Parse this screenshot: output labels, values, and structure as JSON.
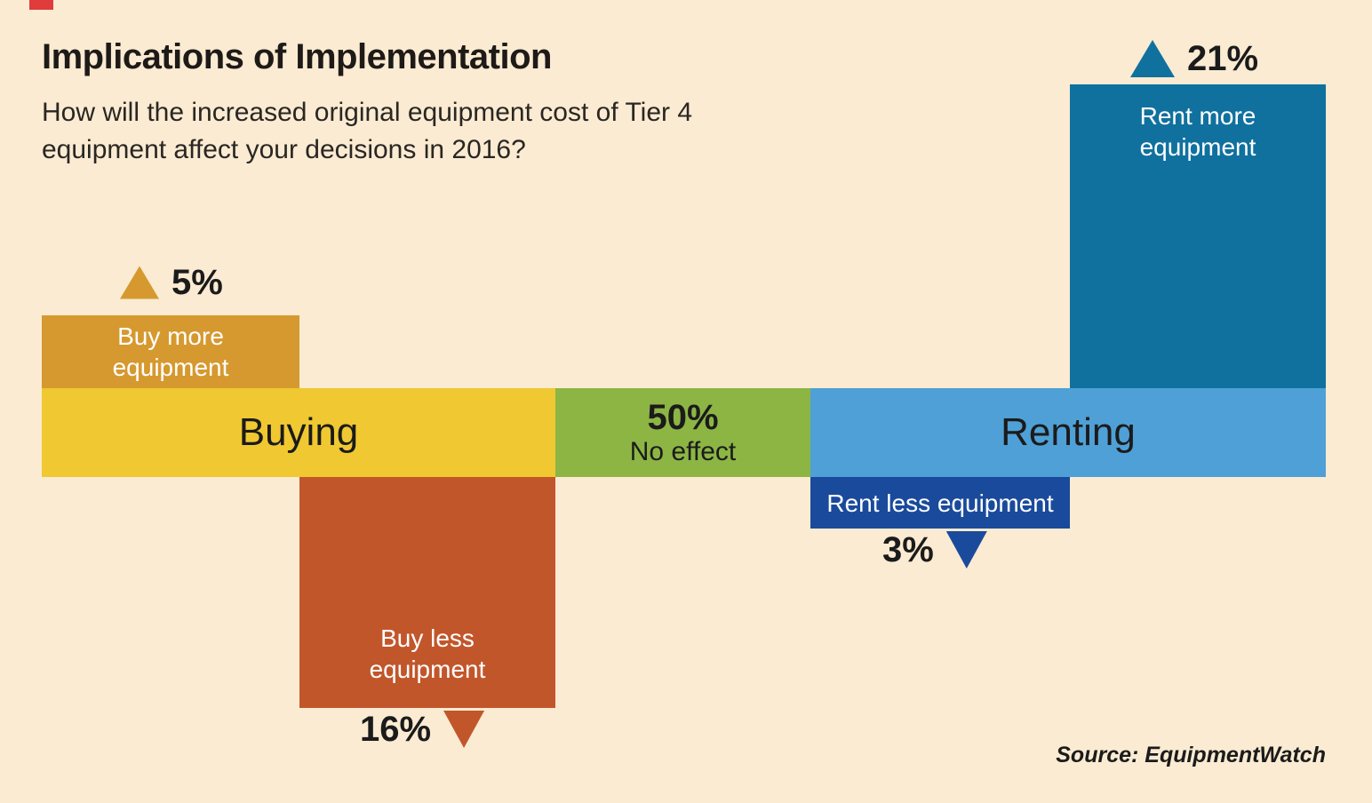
{
  "colors": {
    "background": "#FAEBD2",
    "corner_red": "#E03C3C",
    "buying_yellow": "#F0C831",
    "no_effect_green": "#8CB544",
    "renting_blue": "#4FA0D6",
    "buy_more_amber": "#D6992F",
    "buy_less_rust": "#C2562B",
    "rent_more_teal": "#10719F",
    "rent_less_navy": "#1A4A9B",
    "text_dark": "#1b1b1b",
    "text_white": "#FFFFFF"
  },
  "header": {
    "title": "Implications of Implementation",
    "subtitle_line1": "How will the increased original equipment cost of Tier 4",
    "subtitle_line2": "equipment affect your decisions in 2016?"
  },
  "segments": {
    "buying": {
      "label": "Buying"
    },
    "no_effect": {
      "pct": "50%",
      "label": "No effect"
    },
    "renting": {
      "label": "Renting"
    }
  },
  "blocks": {
    "buy_more": {
      "line1": "Buy more",
      "line2": "equipment",
      "pct": "5%"
    },
    "buy_less": {
      "line1": "Buy less",
      "line2": "equipment",
      "pct": "16%"
    },
    "rent_more": {
      "line1": "Rent more",
      "line2": "equipment",
      "pct": "21%"
    },
    "rent_less": {
      "label": "Rent less equipment",
      "pct": "3%"
    }
  },
  "source": "Source: EquipmentWatch",
  "chart_data": {
    "type": "bar",
    "title": "Implications of Implementation",
    "question": "How will the increased original equipment cost of Tier 4 equipment affect your decisions in 2016?",
    "categories": [
      "Buy more equipment",
      "Buy less equipment",
      "No effect",
      "Rent less equipment",
      "Rent more equipment"
    ],
    "values": [
      5,
      16,
      50,
      3,
      21
    ],
    "directions": [
      "up",
      "down",
      "neutral",
      "down",
      "up"
    ],
    "groups": [
      {
        "name": "Buying",
        "members": [
          "Buy more equipment",
          "Buy less equipment"
        ]
      },
      {
        "name": "No effect",
        "members": [
          "No effect"
        ]
      },
      {
        "name": "Renting",
        "members": [
          "Rent less equipment",
          "Rent more equipment"
        ]
      }
    ],
    "source": "Source: EquipmentWatch"
  }
}
